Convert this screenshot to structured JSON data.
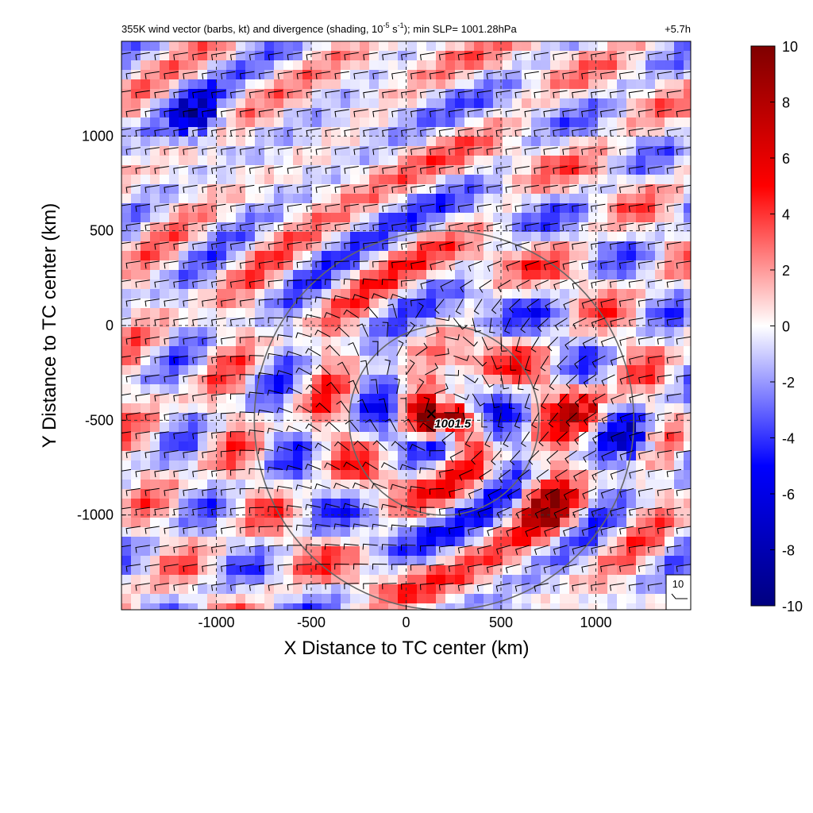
{
  "chart_data": {
    "type": "heatmap",
    "title": "355K wind vector (barbs, kt) and divergence (shading, 10",
    "title_exp1": "-5",
    "title_mid": " s",
    "title_exp2": "-1",
    "title_end": "); min SLP= 1001.28hPa",
    "time_label": "+5.7h",
    "xlabel": "X Distance to TC center (km)",
    "ylabel": "Y Distance to TC center (km)",
    "xlim": [
      -1500,
      1500
    ],
    "ylim": [
      -1500,
      1500
    ],
    "x_ticks": [
      -1000,
      -500,
      0,
      500,
      1000
    ],
    "x_tick_labels": [
      "-1000",
      "-500",
      "0",
      "500",
      "1000"
    ],
    "y_ticks": [
      1000,
      500,
      0,
      -500,
      -1000
    ],
    "y_tick_labels": [
      "1000",
      "500",
      "0",
      "-500",
      "-1000"
    ],
    "grid": true,
    "colorbar": {
      "range": [
        -10,
        10
      ],
      "ticks": [
        10,
        8,
        6,
        4,
        2,
        0,
        -2,
        -4,
        -6,
        -8,
        -10
      ],
      "tick_labels": [
        "10",
        "8",
        "6",
        "4",
        "2",
        "0",
        "-2",
        "-4",
        "-6",
        "-8",
        "-10"
      ],
      "colors": [
        "#00007f",
        "#0000ff",
        "#ffffff",
        "#ff0000",
        "#7f0000"
      ]
    },
    "center": {
      "x": 200,
      "y": -500
    },
    "center_label": "1001.5",
    "range_rings_km": [
      500,
      1000
    ],
    "reference_barb_label": "10",
    "vortex_regions": [
      {
        "x": 180,
        "y": -480,
        "value": 9
      },
      {
        "x": 950,
        "y": -450,
        "value": 8
      },
      {
        "x": 750,
        "y": -950,
        "value": 9
      },
      {
        "x": -1100,
        "y": 1100,
        "value": -9
      },
      {
        "x": 1200,
        "y": -600,
        "value": -8
      }
    ]
  }
}
